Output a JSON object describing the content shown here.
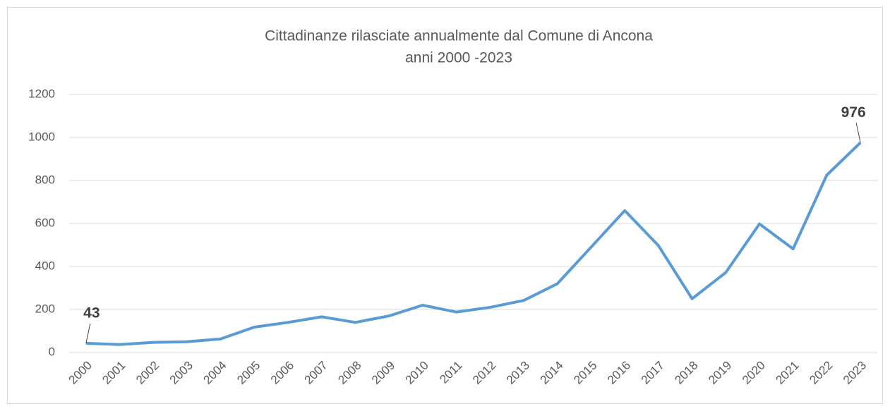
{
  "chart_data": {
    "type": "line",
    "title": [
      "Cittadinanze rilasciate annualmente dal Comune di Ancona",
      "anni 2000 -2023"
    ],
    "categories": [
      "2000",
      "2001",
      "2002",
      "2003",
      "2004",
      "2005",
      "2006",
      "2007",
      "2008",
      "2009",
      "2010",
      "2011",
      "2012",
      "2013",
      "2014",
      "2015",
      "2016",
      "2017",
      "2018",
      "2019",
      "2020",
      "2021",
      "2022",
      "2023"
    ],
    "series": [
      {
        "color": "#5b9bd5",
        "values": [
          43,
          37,
          47,
          50,
          63,
          118,
          140,
          166,
          140,
          170,
          220,
          188,
          210,
          242,
          320,
          490,
          660,
          497,
          250,
          372,
          598,
          482,
          825,
          976
        ],
        "value_labels": [
          "43",
          null,
          null,
          null,
          null,
          null,
          null,
          null,
          null,
          null,
          null,
          null,
          null,
          null,
          null,
          null,
          null,
          null,
          null,
          null,
          null,
          null,
          null,
          "976"
        ]
      }
    ],
    "ylim": [
      0,
      1200
    ],
    "yticks": [
      0,
      200,
      400,
      600,
      800,
      1000,
      1200
    ],
    "grid": true
  }
}
